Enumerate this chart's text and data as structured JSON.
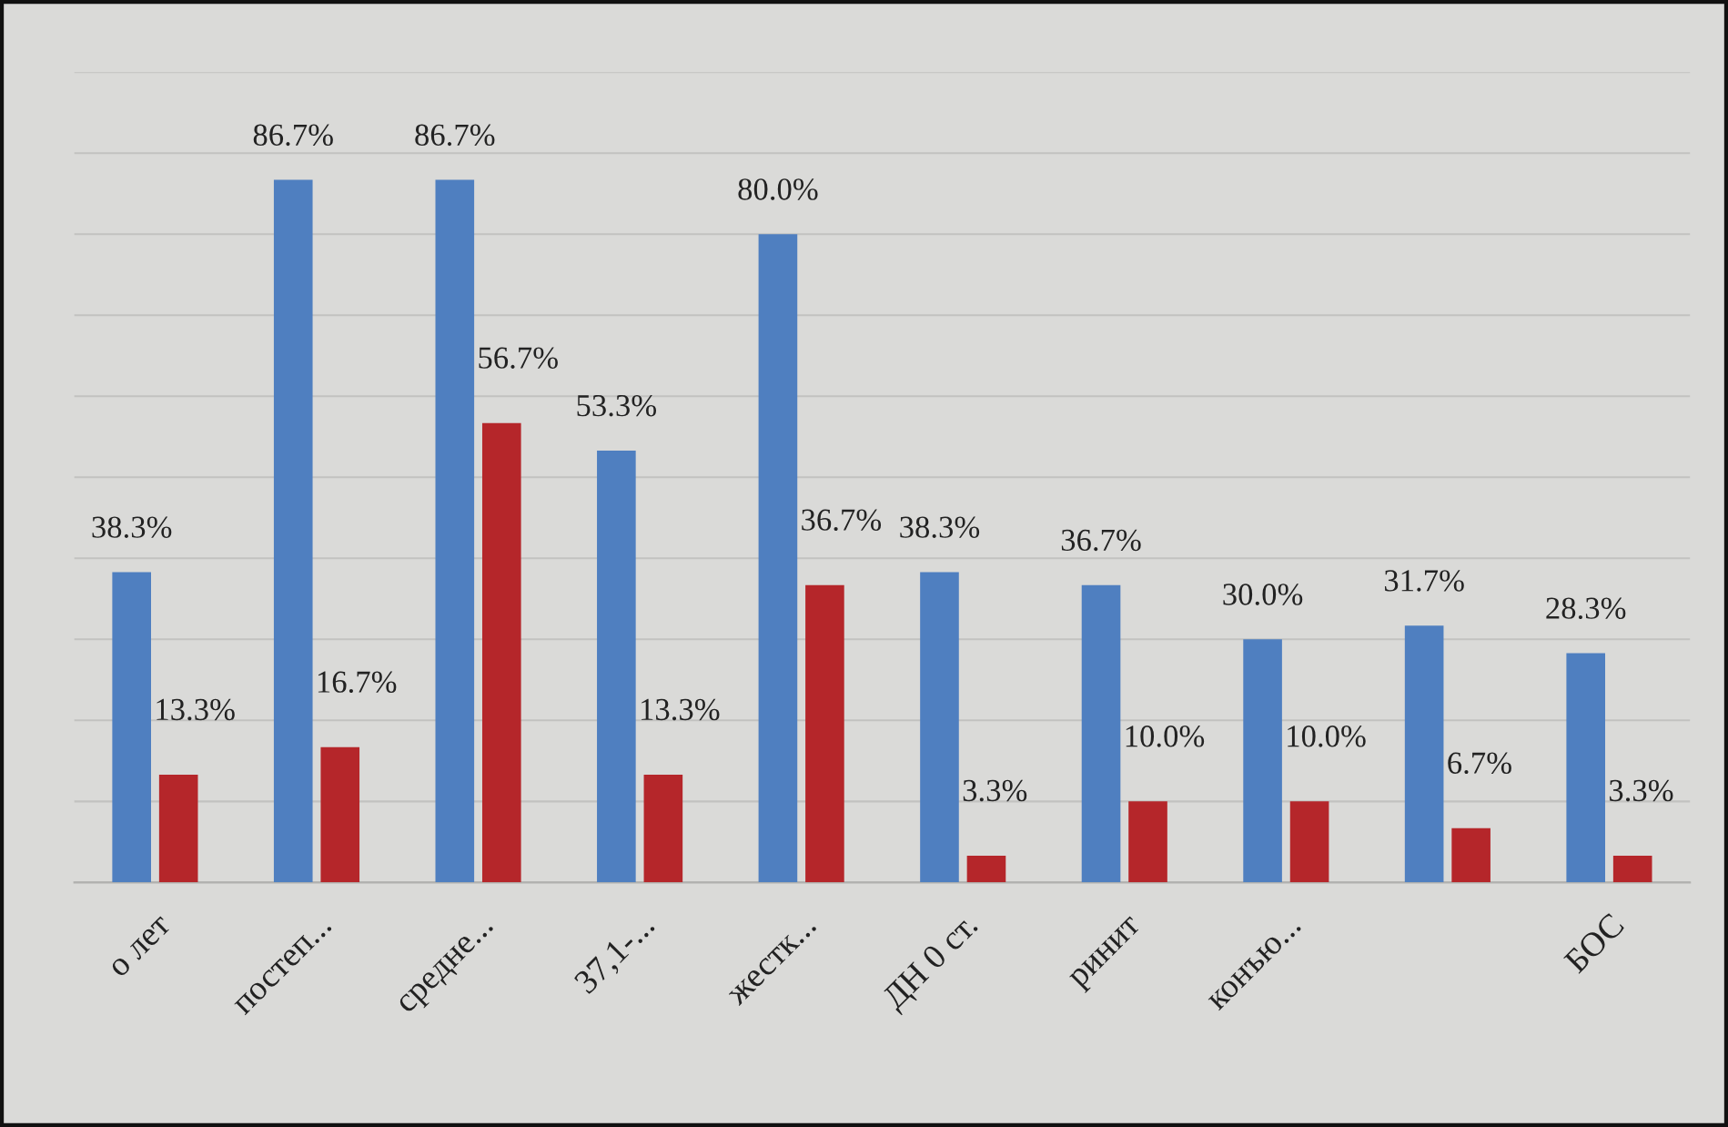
{
  "chart_data": {
    "type": "bar",
    "categories": [
      "о лет",
      "постеп...",
      "средне...",
      "37,1-...",
      "жестк...",
      "ДН 0 ст.",
      "ринит",
      "конъю...",
      null,
      "БОС"
    ],
    "series": [
      {
        "color": "#4f7fc0",
        "values": [
          38.3,
          86.7,
          86.7,
          53.3,
          80.0,
          38.3,
          36.7,
          30.0,
          31.7,
          28.3
        ],
        "value_labels": [
          "38.3%",
          "86.7%",
          "86.7%",
          "53.3%",
          "80.0%",
          "38.3%",
          "36.7%",
          "30.0%",
          "31.7%",
          "28.3%"
        ]
      },
      {
        "color": "#b5262a",
        "values": [
          13.3,
          16.7,
          56.7,
          13.3,
          36.7,
          3.3,
          10.0,
          10.0,
          6.7,
          3.3
        ],
        "value_labels": [
          "13.3%",
          "16.7%",
          "56.7%",
          "13.3%",
          "36.7%",
          "3.3%",
          "10.0%",
          "10.0%",
          "6.7%",
          "3.3%"
        ]
      }
    ],
    "ylim": [
      0,
      100
    ],
    "yticks": [
      {
        "value": 0,
        "label": null
      },
      {
        "value": 10,
        "label": null
      },
      {
        "value": 20,
        "label": null
      },
      {
        "value": 30,
        "label": null
      },
      {
        "value": 40,
        "label": null
      },
      {
        "value": 50,
        "label": null
      },
      {
        "value": 60,
        "label": null
      },
      {
        "value": 70,
        "label": null
      },
      {
        "value": 80,
        "label": null
      },
      {
        "value": 90,
        "label": null
      },
      {
        "value": 100,
        "label": null
      }
    ],
    "grid": "y",
    "tick_labels": "x",
    "legend": false
  }
}
